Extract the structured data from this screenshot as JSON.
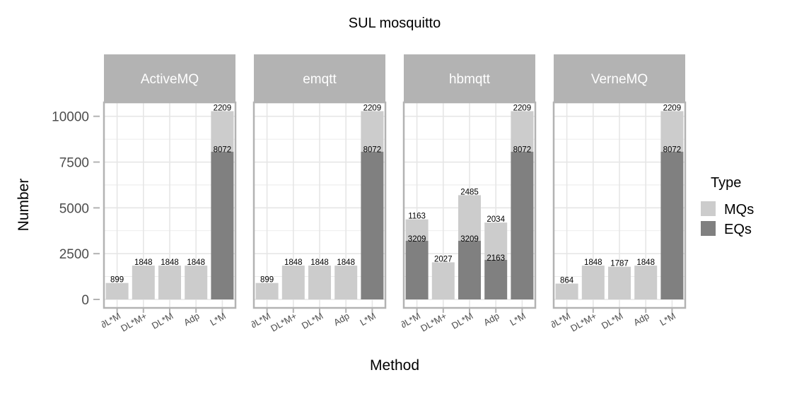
{
  "title": "SUL  mosquitto",
  "legend": {
    "title": "Type",
    "items": [
      {
        "label": "MQs",
        "color": "#cccccc"
      },
      {
        "label": "EQs",
        "color": "#808080"
      }
    ]
  },
  "chart_data": {
    "type": "bar",
    "stacked": true,
    "title": "SUL  mosquitto",
    "xlabel": "Method",
    "ylabel": "Number",
    "ylim": [
      -800,
      12700
    ],
    "yticks": [
      0,
      2500,
      5000,
      7500,
      10000
    ],
    "ytick_labels": [
      "0",
      "2500",
      "5000",
      "7500",
      "10000"
    ],
    "categories": [
      "∂L*M",
      "DL*M+",
      "DL*M",
      "Adp",
      "L*M"
    ],
    "grid": true,
    "legend_position": "right",
    "colors": {
      "MQs": "#cccccc",
      "EQs": "#808080"
    },
    "facets": [
      {
        "name": "ActiveMQ",
        "bars": [
          {
            "category": "∂L*M",
            "EQs": 0,
            "MQs": 899
          },
          {
            "category": "DL*M+",
            "EQs": 0,
            "MQs": 1848
          },
          {
            "category": "DL*M",
            "EQs": 0,
            "MQs": 1848
          },
          {
            "category": "Adp",
            "EQs": 0,
            "MQs": 1848
          },
          {
            "category": "L*M",
            "EQs": 8072,
            "MQs": 2209
          }
        ]
      },
      {
        "name": "emqtt",
        "bars": [
          {
            "category": "∂L*M",
            "EQs": 0,
            "MQs": 899
          },
          {
            "category": "DL*M+",
            "EQs": 0,
            "MQs": 1848
          },
          {
            "category": "DL*M",
            "EQs": 0,
            "MQs": 1848
          },
          {
            "category": "Adp",
            "EQs": 0,
            "MQs": 1848
          },
          {
            "category": "L*M",
            "EQs": 8072,
            "MQs": 2209
          }
        ]
      },
      {
        "name": "hbmqtt",
        "bars": [
          {
            "category": "∂L*M",
            "EQs": 3209,
            "MQs": 1163
          },
          {
            "category": "DL*M+",
            "EQs": 0,
            "MQs": 2027
          },
          {
            "category": "DL*M",
            "EQs": 3209,
            "MQs": 2485
          },
          {
            "category": "Adp",
            "EQs": 2163,
            "MQs": 2034
          },
          {
            "category": "L*M",
            "EQs": 8072,
            "MQs": 2209
          }
        ]
      },
      {
        "name": "VerneMQ",
        "bars": [
          {
            "category": "∂L*M",
            "EQs": 0,
            "MQs": 864
          },
          {
            "category": "DL*M+",
            "EQs": 0,
            "MQs": 1848
          },
          {
            "category": "DL*M",
            "EQs": 0,
            "MQs": 1787
          },
          {
            "category": "Adp",
            "EQs": 0,
            "MQs": 1848
          },
          {
            "category": "L*M",
            "EQs": 8072,
            "MQs": 2209
          }
        ]
      }
    ]
  }
}
